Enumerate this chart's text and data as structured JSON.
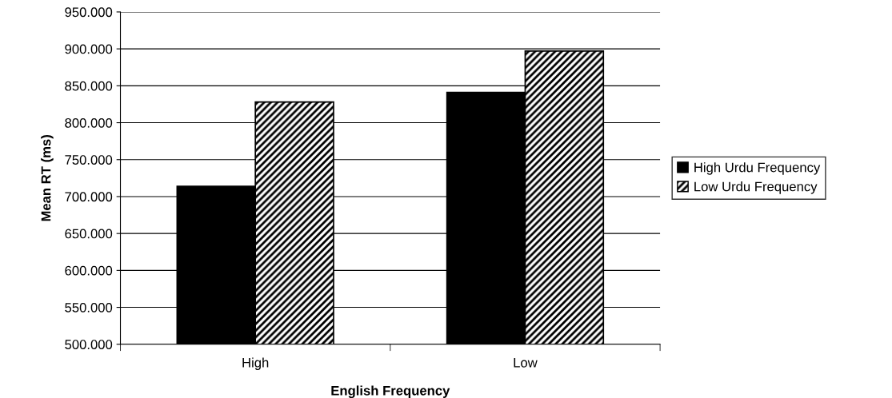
{
  "chart_data": {
    "type": "bar",
    "xlabel": "English Frequency",
    "ylabel": "Mean RT (ms)",
    "categories": [
      "High",
      "Low"
    ],
    "series": [
      {
        "name": "High Urdu Frequency",
        "color": "#000000",
        "values": [
          714,
          841
        ]
      },
      {
        "name": "Low Urdu Frequency",
        "color": "#000000",
        "values": [
          828,
          897
        ]
      }
    ],
    "ylim": [
      500,
      950
    ],
    "yticks": [
      {
        "value": 500,
        "label": "500.000"
      },
      {
        "value": 550,
        "label": "550.000"
      },
      {
        "value": 600,
        "label": "600.000"
      },
      {
        "value": 650,
        "label": "650.000"
      },
      {
        "value": 700,
        "label": "700.000"
      },
      {
        "value": 750,
        "label": "750.000"
      },
      {
        "value": 800,
        "label": "800.000"
      },
      {
        "value": 850,
        "label": "850.000"
      },
      {
        "value": 900,
        "label": "900.000"
      },
      {
        "value": 950,
        "label": "950.000"
      }
    ],
    "grid": "y",
    "legend": "right"
  }
}
